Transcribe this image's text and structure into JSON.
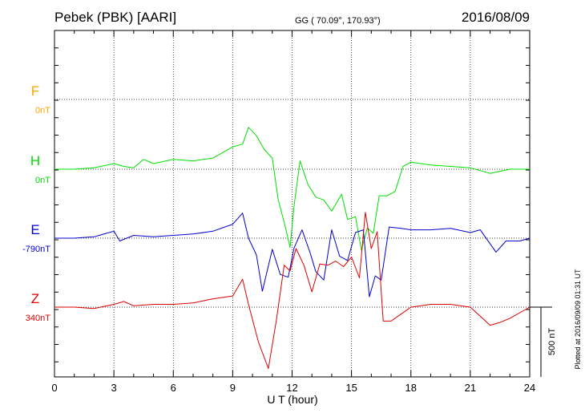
{
  "header": {
    "station": "Pebek (PBK)  [AARI]",
    "coords": "GG ( 70.09°, 170.93°)",
    "date": "2016/08/09"
  },
  "side_note": "Plotted at 2016/09/09 01:31  UT",
  "scale_label": "500 nT",
  "colors": {
    "F": "#ffa500",
    "H": "#00e000",
    "E": "#0000cc",
    "Z": "#dd0000"
  },
  "chart_data": {
    "type": "line",
    "xlabel": "U T (hour)",
    "xlim": [
      0,
      24
    ],
    "xticks": [
      "0",
      "3",
      "6",
      "9",
      "12",
      "15",
      "18",
      "21",
      "24"
    ],
    "scale_bar_nT": 500,
    "grid": true,
    "series": [
      {
        "name": "F",
        "baseline_label": "0nT",
        "x": [],
        "values": []
      },
      {
        "name": "H",
        "baseline_label": "0nT",
        "x": [
          0,
          1,
          2,
          3,
          3.5,
          4,
          4.5,
          5,
          6,
          7,
          8,
          9,
          9.5,
          9.8,
          10.2,
          10.6,
          11,
          11.3,
          11.6,
          11.9,
          12.1,
          12.4,
          12.8,
          13.2,
          13.6,
          14,
          14.5,
          14.8,
          15.2,
          15.5,
          15.8,
          16.1,
          16.4,
          16.8,
          17.2,
          17.6,
          18,
          19,
          20,
          21,
          22,
          23,
          24
        ],
        "values": [
          0,
          0,
          10,
          40,
          20,
          10,
          70,
          40,
          70,
          60,
          80,
          160,
          180,
          300,
          240,
          140,
          80,
          -220,
          -380,
          -560,
          -260,
          60,
          -110,
          -200,
          -220,
          -300,
          -180,
          -360,
          -340,
          -580,
          -420,
          -460,
          -190,
          -190,
          -160,
          20,
          50,
          30,
          20,
          10,
          -30,
          0,
          0
        ]
      },
      {
        "name": "E",
        "baseline_label": "-790nT",
        "x": [
          0,
          1,
          2,
          3,
          3.3,
          4,
          5,
          6,
          7,
          8,
          9,
          9.5,
          9.8,
          10.2,
          10.5,
          11,
          11.4,
          11.8,
          12.1,
          12.5,
          12.9,
          13.2,
          13.6,
          14,
          14.4,
          14.8,
          15.2,
          15.6,
          15.9,
          16.2,
          16.5,
          16.9,
          17.5,
          18,
          19,
          20,
          21,
          21.5,
          22.3,
          22.8,
          23.5,
          24
        ],
        "values": [
          0,
          0,
          10,
          50,
          -20,
          20,
          10,
          20,
          30,
          50,
          100,
          180,
          0,
          -120,
          -380,
          -80,
          -260,
          -280,
          -70,
          60,
          -100,
          -240,
          -300,
          60,
          -130,
          -160,
          40,
          60,
          -420,
          -270,
          -300,
          80,
          70,
          60,
          60,
          70,
          40,
          60,
          -100,
          -20,
          -20,
          0
        ]
      },
      {
        "name": "Z",
        "baseline_label": "340nT",
        "x": [
          0,
          1,
          2,
          3,
          3.5,
          4,
          5,
          6,
          7,
          8,
          9,
          9.5,
          9.8,
          10.3,
          10.8,
          11.2,
          11.6,
          11.9,
          12.2,
          12.6,
          13,
          13.4,
          13.8,
          14.2,
          14.6,
          15,
          15.4,
          15.7,
          16,
          16.3,
          16.6,
          17,
          17.5,
          18,
          19,
          20,
          21,
          22,
          22.5,
          23,
          24
        ],
        "values": [
          0,
          0,
          -10,
          20,
          40,
          10,
          20,
          20,
          30,
          60,
          80,
          200,
          20,
          -250,
          -440,
          -100,
          300,
          260,
          420,
          300,
          110,
          310,
          300,
          330,
          290,
          360,
          210,
          680,
          420,
          540,
          -100,
          -100,
          -50,
          0,
          20,
          20,
          0,
          -130,
          -110,
          -80,
          0
        ]
      }
    ]
  }
}
